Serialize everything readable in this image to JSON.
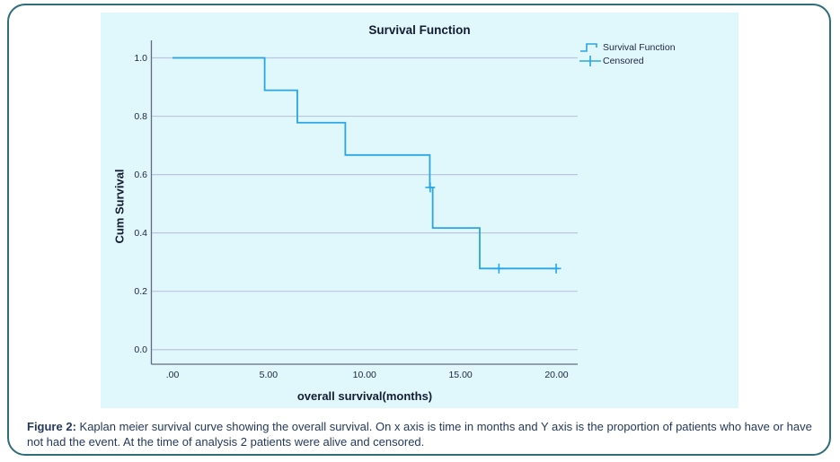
{
  "figure": {
    "caption_label": "Figure 2:",
    "caption_text": " Kaplan meier survival curve showing the overall survival. On x axis is time in months and Y axis is the proportion of patients who have or have not had the event. At the time of analysis 2 patients were alive and censored."
  },
  "chart_data": {
    "type": "line",
    "subtype": "kaplan-meier-step",
    "title": "Survival Function",
    "xlabel": "overall survival(months)",
    "ylabel": "Cum Survival",
    "xlim": [
      -1.1,
      21.1
    ],
    "ylim": [
      -0.05,
      1.06
    ],
    "grid": "horizontal",
    "x_ticks": [
      {
        "value": 0,
        "label": ".00"
      },
      {
        "value": 5,
        "label": "5.00"
      },
      {
        "value": 10,
        "label": "10.00"
      },
      {
        "value": 15,
        "label": "15.00"
      },
      {
        "value": 20,
        "label": "20.00"
      }
    ],
    "y_ticks": [
      {
        "value": 0.0,
        "label": "0.0"
      },
      {
        "value": 0.2,
        "label": "0.2"
      },
      {
        "value": 0.4,
        "label": "0.4"
      },
      {
        "value": 0.6,
        "label": "0.6"
      },
      {
        "value": 0.8,
        "label": "0.8"
      },
      {
        "value": 1.0,
        "label": "1.0"
      }
    ],
    "legend": {
      "position": "top-right-outside",
      "entries": [
        {
          "label": "Survival Function",
          "marker": "step-line"
        },
        {
          "label": "Censored",
          "marker": "plus"
        }
      ]
    },
    "series": [
      {
        "name": "Survival Function",
        "type": "step-post",
        "points": [
          [
            0,
            1.0
          ],
          [
            4.8,
            0.889
          ],
          [
            6.5,
            0.778
          ],
          [
            9.0,
            0.667
          ],
          [
            13.4,
            0.556
          ],
          [
            13.55,
            0.417
          ],
          [
            16.0,
            0.278
          ]
        ],
        "end_x": 20.1
      }
    ],
    "censored_points": [
      [
        13.42,
        0.556
      ],
      [
        17.0,
        0.278
      ],
      [
        19.98,
        0.278
      ]
    ],
    "colors": {
      "line": "#2aa5e5",
      "grid": "#b9c6df",
      "axis": "#5f6b85",
      "plot_bg": "#e0f8fb",
      "text": "#131c33",
      "caption": "#24395e",
      "border": "#2e6d79"
    }
  }
}
